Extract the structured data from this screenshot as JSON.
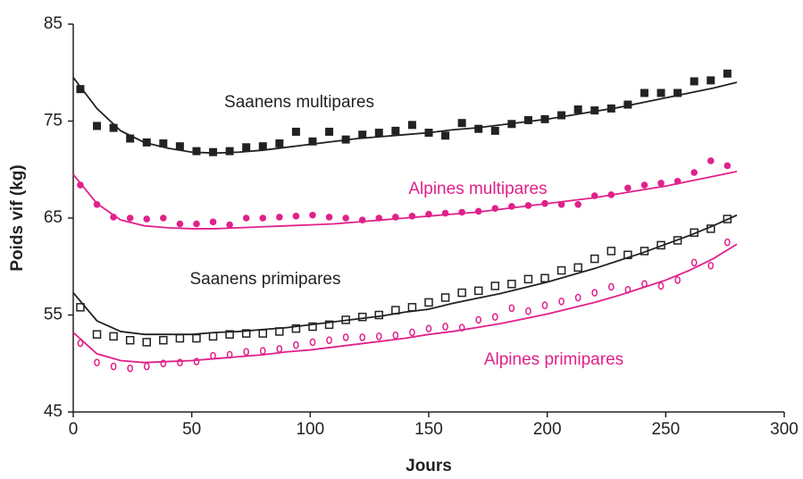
{
  "chart_data": {
    "type": "scatter",
    "xlabel": "Jours",
    "ylabel": "Poids vif (kg)",
    "xlim": [
      0,
      300
    ],
    "xticks": [
      0,
      50,
      100,
      150,
      200,
      250,
      300
    ],
    "ylim": [
      45,
      85
    ],
    "yticks": [
      45,
      55,
      65,
      75,
      85
    ],
    "x": [
      3,
      10,
      17,
      24,
      31,
      38,
      45,
      52,
      59,
      66,
      73,
      80,
      87,
      94,
      101,
      108,
      115,
      122,
      129,
      136,
      143,
      150,
      157,
      164,
      171,
      178,
      185,
      192,
      199,
      206,
      213,
      220,
      227,
      234,
      241,
      248,
      255,
      262,
      269,
      276
    ],
    "fit_x": [
      0,
      10,
      20,
      30,
      40,
      50,
      60,
      70,
      80,
      90,
      100,
      110,
      120,
      130,
      140,
      150,
      160,
      170,
      180,
      190,
      200,
      210,
      220,
      230,
      240,
      250,
      260,
      270,
      280
    ],
    "series": [
      {
        "name": "Saanens multipares",
        "color": "#222222",
        "marker": "square",
        "filled": true,
        "values": [
          78.3,
          74.5,
          74.3,
          73.2,
          72.8,
          72.7,
          72.4,
          71.9,
          71.8,
          71.9,
          72.3,
          72.4,
          72.7,
          73.9,
          72.9,
          73.9,
          73.1,
          73.6,
          73.8,
          74.0,
          74.6,
          73.8,
          73.5,
          74.8,
          74.2,
          74.0,
          74.7,
          75.1,
          75.2,
          75.6,
          76.2,
          76.1,
          76.3,
          76.7,
          77.9,
          77.9,
          77.9,
          79.1,
          79.2,
          79.9
        ],
        "fit_values": [
          79.5,
          76.3,
          74.0,
          72.8,
          72.2,
          71.8,
          71.7,
          71.8,
          72.0,
          72.3,
          72.6,
          72.9,
          73.2,
          73.4,
          73.6,
          73.8,
          74.1,
          74.3,
          74.6,
          74.9,
          75.2,
          75.6,
          76.0,
          76.4,
          76.9,
          77.4,
          77.9,
          78.4,
          79.0
        ]
      },
      {
        "name": "Alpines multipares",
        "color": "#e0218a",
        "marker": "circle",
        "filled": true,
        "values": [
          68.4,
          66.4,
          65.1,
          65.0,
          64.9,
          65.0,
          64.4,
          64.4,
          64.6,
          64.3,
          65.0,
          65.0,
          65.1,
          65.2,
          65.3,
          65.1,
          65.0,
          64.8,
          65.0,
          65.1,
          65.2,
          65.4,
          65.5,
          65.6,
          65.7,
          66.0,
          66.2,
          66.3,
          66.5,
          66.4,
          66.4,
          67.3,
          67.4,
          68.1,
          68.4,
          68.6,
          68.8,
          69.7,
          70.9,
          70.4
        ],
        "fit_values": [
          69.5,
          66.5,
          64.8,
          64.2,
          64.0,
          63.9,
          63.9,
          64.0,
          64.1,
          64.2,
          64.3,
          64.4,
          64.6,
          64.8,
          65.0,
          65.2,
          65.4,
          65.6,
          65.9,
          66.2,
          66.5,
          66.8,
          67.1,
          67.5,
          67.9,
          68.3,
          68.8,
          69.3,
          69.8
        ]
      },
      {
        "name": "Saanens primipares",
        "color": "#222222",
        "marker": "square",
        "filled": false,
        "values": [
          55.8,
          53.0,
          52.8,
          52.4,
          52.2,
          52.4,
          52.6,
          52.6,
          52.8,
          53.0,
          53.1,
          53.1,
          53.3,
          53.6,
          53.8,
          54.0,
          54.5,
          54.8,
          55.0,
          55.5,
          55.8,
          56.3,
          56.8,
          57.3,
          57.5,
          58.0,
          58.2,
          58.7,
          58.8,
          59.6,
          59.9,
          60.8,
          61.6,
          61.2,
          61.6,
          62.2,
          62.7,
          63.5,
          63.9,
          64.9
        ],
        "fit_values": [
          57.3,
          54.4,
          53.3,
          53.0,
          53.0,
          53.0,
          53.2,
          53.3,
          53.5,
          53.7,
          54.0,
          54.3,
          54.6,
          54.9,
          55.3,
          55.6,
          56.2,
          56.7,
          57.2,
          57.8,
          58.4,
          59.1,
          59.8,
          60.6,
          61.4,
          62.3,
          63.2,
          64.2,
          65.3
        ]
      },
      {
        "name": "Alpines primipares",
        "color": "#e0218a",
        "marker": "circle",
        "filled": false,
        "values": [
          52.1,
          50.1,
          49.7,
          49.5,
          49.7,
          50.0,
          50.1,
          50.2,
          50.8,
          50.9,
          51.2,
          51.3,
          51.5,
          51.9,
          52.2,
          52.4,
          52.7,
          52.7,
          52.8,
          52.9,
          53.2,
          53.6,
          53.8,
          53.7,
          54.5,
          54.8,
          55.7,
          55.4,
          56.0,
          56.4,
          56.8,
          57.3,
          57.9,
          57.6,
          58.2,
          58.0,
          58.6,
          60.4,
          60.1,
          62.5
        ],
        "fit_values": [
          53.2,
          51.0,
          50.3,
          50.1,
          50.2,
          50.3,
          50.5,
          50.7,
          50.9,
          51.2,
          51.4,
          51.7,
          52.0,
          52.3,
          52.6,
          53.0,
          53.3,
          53.7,
          54.1,
          54.6,
          55.1,
          55.7,
          56.3,
          57.0,
          57.8,
          58.6,
          59.6,
          60.8,
          62.3
        ]
      }
    ]
  }
}
